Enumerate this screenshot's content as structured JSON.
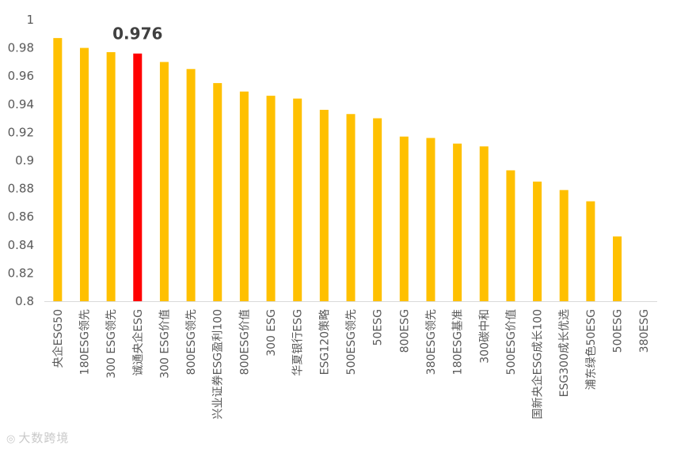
{
  "chart_data": {
    "type": "bar",
    "categories": [
      "央企ESG50",
      "180ESG领先",
      "300 ESG领先",
      "诚通央企ESG",
      "300 ESG价值",
      "800ESG领先",
      "兴业证券ESG盈利100",
      "800ESG价值",
      "300 ESG",
      "华夏银行ESG",
      "ESG120策略",
      "500ESG领先",
      "50ESG",
      "800ESG",
      "380ESG领先",
      "180ESG基准",
      "300碳中和",
      "500ESG价值",
      "国新央企ESG成长100",
      "ESG300成长优选",
      "浦东绿色50ESG",
      "500ESG",
      "380ESG"
    ],
    "values": [
      0.987,
      0.98,
      0.977,
      0.976,
      0.97,
      0.965,
      0.955,
      0.949,
      0.946,
      0.944,
      0.936,
      0.933,
      0.93,
      0.917,
      0.916,
      0.912,
      0.91,
      0.893,
      0.885,
      0.879,
      0.871,
      0.846,
      0.8
    ],
    "highlight_index": 3,
    "annotation": "0.976",
    "yticks": [
      "0.8",
      "0.82",
      "0.84",
      "0.86",
      "0.88",
      "0.9",
      "0.92",
      "0.94",
      "0.96",
      "0.98",
      "1"
    ],
    "ylim": [
      0.8,
      1.0
    ],
    "title": "",
    "xlabel": "",
    "ylabel": "",
    "grid": false,
    "colors": {
      "bar": "#FFC000",
      "highlight": "#FF0000",
      "axis": "#D9D9D9"
    }
  },
  "watermark": {
    "text": "大数跨境",
    "icon": "logo-icon"
  }
}
